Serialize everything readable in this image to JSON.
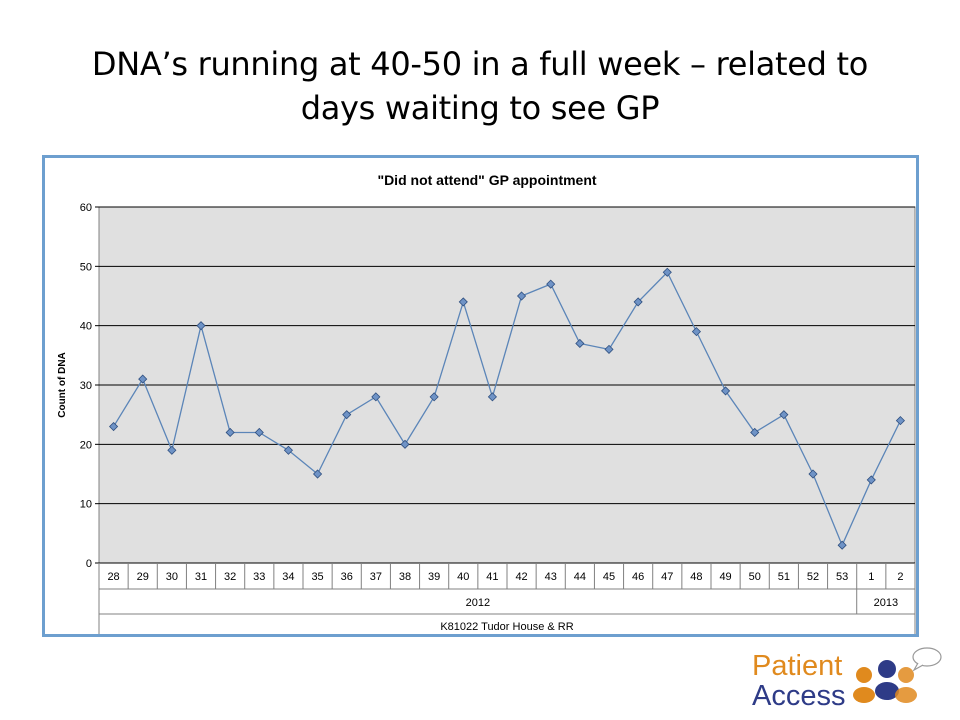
{
  "slide": {
    "title_line1": "DNA’s running at 40-50 in a full week – related to",
    "title_line2": "days waiting to see GP"
  },
  "logo": {
    "line1": "Patient",
    "line2": "Access"
  },
  "colors": {
    "frame": "#6d9fcf",
    "plot_bg": "#e0e0e0",
    "line": "#5b85b8",
    "marker_fill": "#6f93c6",
    "marker_stroke": "#2f4f7f",
    "logo_orange": "#e08a1e",
    "logo_blue": "#2e3b87"
  },
  "chart_data": {
    "type": "line",
    "title": "\"Did not attend\" GP appointment",
    "ylabel": "Count of DNA",
    "xlabel": "",
    "ylim": [
      0,
      60
    ],
    "yticks": [
      0,
      10,
      20,
      30,
      40,
      50,
      60
    ],
    "grid": true,
    "legend": "none",
    "x": [
      "28",
      "29",
      "30",
      "31",
      "32",
      "33",
      "34",
      "35",
      "36",
      "37",
      "38",
      "39",
      "40",
      "41",
      "42",
      "43",
      "44",
      "45",
      "46",
      "47",
      "48",
      "49",
      "50",
      "51",
      "52",
      "53",
      "1",
      "2"
    ],
    "year_groups": [
      {
        "label": "2012",
        "span": 26
      },
      {
        "label": "2013",
        "span": 2
      }
    ],
    "group_label": "K81022 Tudor House & RR",
    "series": [
      {
        "values": [
          23,
          31,
          19,
          40,
          22,
          22,
          19,
          15,
          25,
          28,
          20,
          28,
          44,
          28,
          45,
          47,
          37,
          36,
          44,
          49,
          39,
          29,
          22,
          25,
          15,
          3,
          14,
          24
        ]
      }
    ]
  }
}
